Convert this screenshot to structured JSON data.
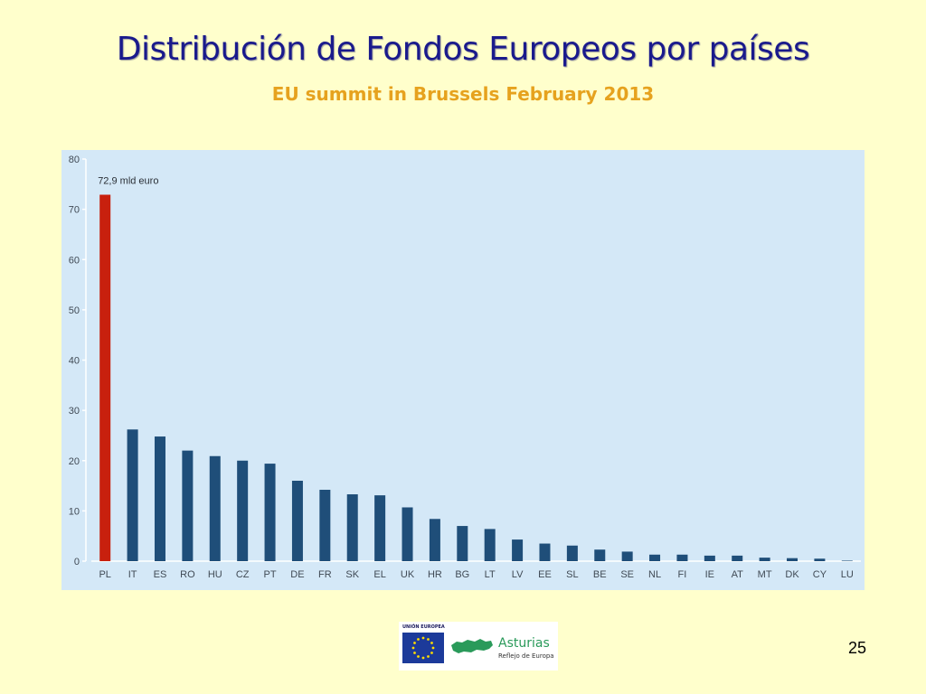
{
  "slide": {
    "title": "Distribución de Fondos Europeos por países",
    "subtitle": "EU summit in Brussels February 2013",
    "page_number": "25"
  },
  "logo": {
    "ue_text": "UNIÓN EUROPEA",
    "brand": "Asturias",
    "tagline": "Reflejo de Europa"
  },
  "colors": {
    "background": "#ffffcc",
    "title": "#1a1a8c",
    "subtitle": "#e6a21e",
    "chart_background": "#d4e8f7",
    "bar": "#1f4e79",
    "bar_highlight": "#c8200e"
  },
  "chart_data": {
    "type": "bar",
    "categories": [
      "PL",
      "IT",
      "ES",
      "RO",
      "HU",
      "CZ",
      "PT",
      "DE",
      "FR",
      "SK",
      "EL",
      "UK",
      "HR",
      "BG",
      "LT",
      "LV",
      "EE",
      "SL",
      "BE",
      "SE",
      "NL",
      "FI",
      "IE",
      "AT",
      "MT",
      "DK",
      "CY",
      "LU"
    ],
    "values": [
      72.9,
      26.2,
      24.8,
      22,
      20.9,
      20,
      19.4,
      16,
      14.2,
      13.3,
      13.1,
      10.7,
      8.4,
      7,
      6.4,
      4.3,
      3.5,
      3.1,
      2.3,
      1.9,
      1.3,
      1.3,
      1.1,
      1.1,
      0.7,
      0.6,
      0.5,
      0.1
    ],
    "highlight_index": 0,
    "annotation": "72,9 mld euro",
    "yticks": [
      0,
      10,
      20,
      30,
      40,
      50,
      60,
      70,
      80
    ],
    "ylim": [
      0,
      80
    ],
    "xlabel": "",
    "ylabel": "",
    "grid": false
  }
}
